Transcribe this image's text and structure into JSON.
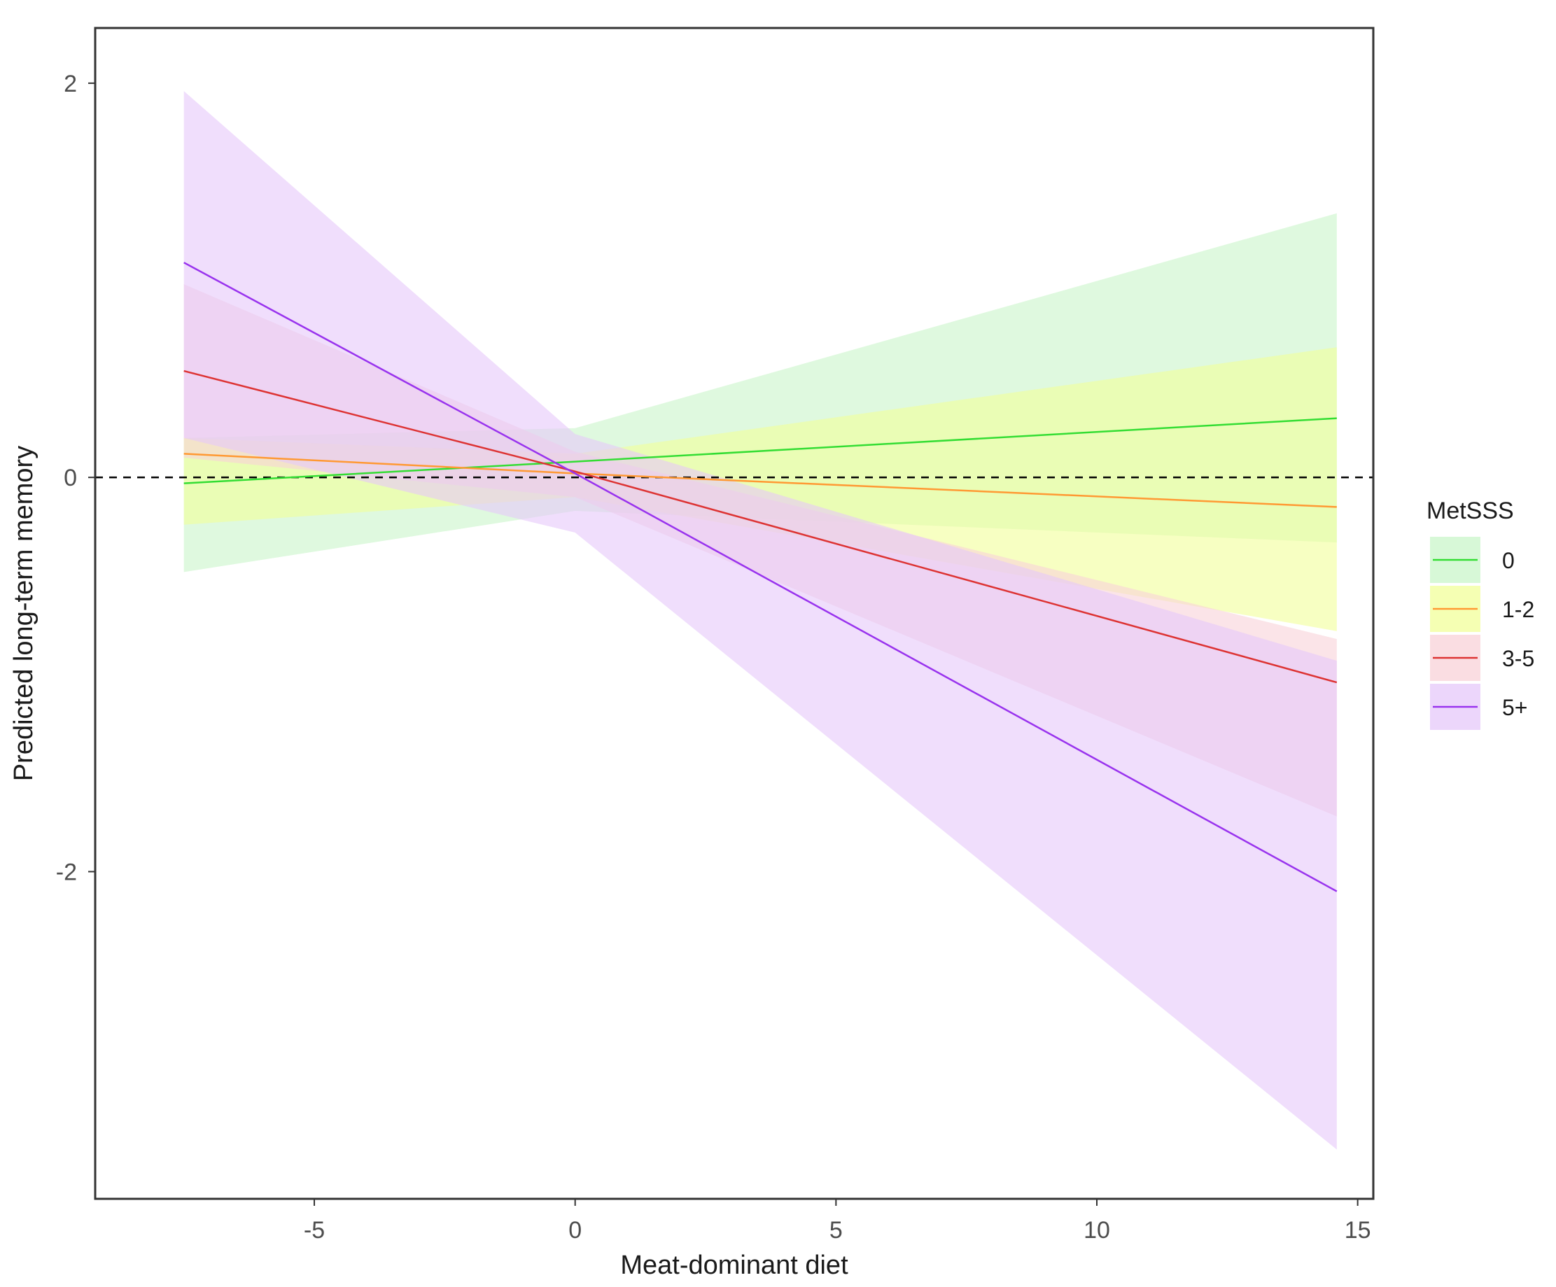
{
  "chart_data": {
    "type": "line",
    "title": "",
    "xlabel": "Meat-dominant diet",
    "ylabel": "Predicted long-term memory",
    "xlim": [
      -9.2,
      15.3
    ],
    "ylim": [
      -3.66,
      2.28
    ],
    "x_ticks": [
      -5,
      0,
      5,
      10,
      15
    ],
    "y_ticks": [
      2,
      0,
      -2
    ],
    "x_tick_labels": [
      "-5",
      "0",
      "5",
      "10",
      "15"
    ],
    "y_tick_labels": [
      "2",
      "0",
      "-2"
    ],
    "reference_line": {
      "y": 0,
      "style": "dashed"
    },
    "legend_title": "MetSSS",
    "legend_position": "right",
    "series": [
      {
        "name": "0",
        "color": "#33dd33",
        "band_color": "#c9f5c9",
        "x": [
          -7.5,
          0,
          14.6
        ],
        "fit": [
          -0.03,
          0.08,
          0.3
        ],
        "lower": [
          -0.48,
          -0.17,
          -0.33
        ],
        "upper": [
          0.2,
          0.25,
          1.34
        ]
      },
      {
        "name": "1-2",
        "color": "#ff9933",
        "band_color": "#f2ff99",
        "x": [
          -7.5,
          0,
          14.6
        ],
        "fit": [
          0.12,
          0.02,
          -0.15
        ],
        "lower": [
          -0.24,
          -0.1,
          -0.78
        ],
        "upper": [
          0.2,
          0.12,
          0.66
        ]
      },
      {
        "name": "3-5",
        "color": "#dd3333",
        "band_color": "#f8d2d8",
        "x": [
          -7.5,
          0,
          14.6
        ],
        "fit": [
          0.54,
          0.03,
          -1.04
        ],
        "lower": [
          0.1,
          -0.1,
          -1.72
        ],
        "upper": [
          0.98,
          0.13,
          -0.82
        ]
      },
      {
        "name": "5+",
        "color": "#9933ee",
        "band_color": "#e6c8fa",
        "x": [
          -7.5,
          0,
          14.6
        ],
        "fit": [
          1.09,
          0.02,
          -2.1
        ],
        "lower": [
          0.2,
          -0.28,
          -3.41
        ],
        "upper": [
          1.96,
          0.22,
          -0.93
        ]
      }
    ]
  }
}
